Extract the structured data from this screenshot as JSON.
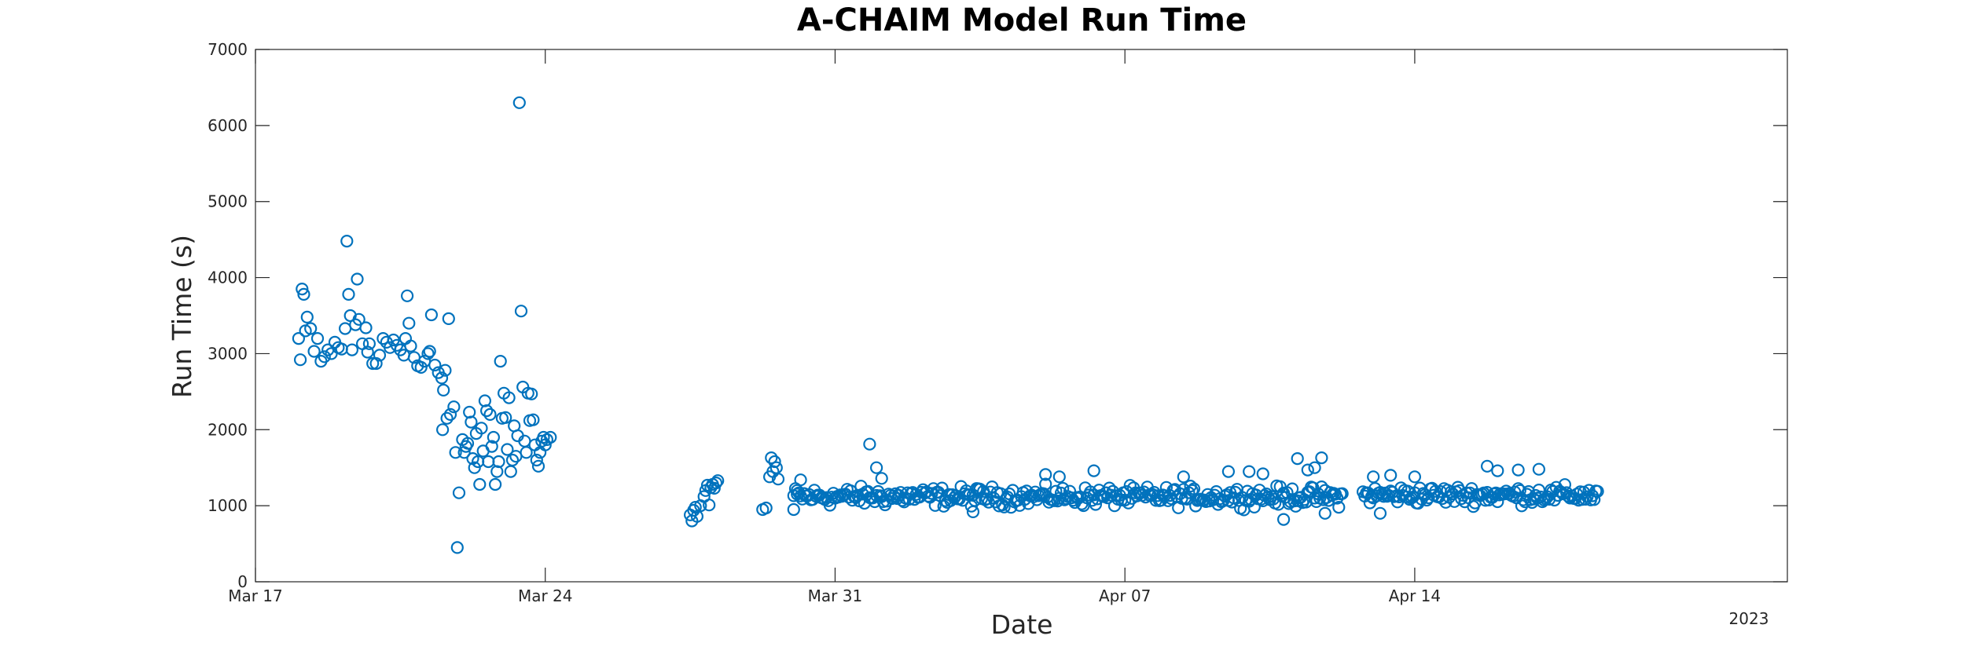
{
  "chart_data": {
    "type": "scatter",
    "title": "A-CHAIM Model Run Time",
    "xlabel": "Date",
    "ylabel": "Run Time (s)",
    "year_label": "2023",
    "xlim": [
      "2023-03-17",
      "2023-04-23"
    ],
    "ylim": [
      0,
      7000
    ],
    "x_ticks": [
      "Mar 17",
      "Mar 24",
      "Mar 31",
      "Apr 07",
      "Apr 14"
    ],
    "x_tick_dates": [
      "2023-03-17",
      "2023-03-24",
      "2023-03-31",
      "2023-04-07",
      "2023-04-14"
    ],
    "y_ticks": [
      "0",
      "1000",
      "2000",
      "3000",
      "4000",
      "5000",
      "6000",
      "7000"
    ],
    "grid": false,
    "marker": "open-circle",
    "color": "#0072BD",
    "series": [
      {
        "points": [
          [
            "2023-03-18 01:00",
            3200
          ],
          [
            "2023-03-18 02:00",
            2920
          ],
          [
            "2023-03-18 03:00",
            3850
          ],
          [
            "2023-03-18 04:00",
            3780
          ],
          [
            "2023-03-18 05:00",
            3300
          ],
          [
            "2023-03-18 06:00",
            3480
          ],
          [
            "2023-03-18 08:00",
            3330
          ],
          [
            "2023-03-18 10:00",
            3030
          ],
          [
            "2023-03-18 12:00",
            3200
          ],
          [
            "2023-03-18 14:00",
            2900
          ],
          [
            "2023-03-18 16:00",
            2960
          ],
          [
            "2023-03-18 18:00",
            3050
          ],
          [
            "2023-03-18 20:00",
            3000
          ],
          [
            "2023-03-18 22:00",
            3150
          ],
          [
            "2023-03-19 00:00",
            3080
          ],
          [
            "2023-03-19 02:00",
            3060
          ],
          [
            "2023-03-19 04:00",
            3330
          ],
          [
            "2023-03-19 05:00",
            4480
          ],
          [
            "2023-03-19 06:00",
            3780
          ],
          [
            "2023-03-19 07:00",
            3500
          ],
          [
            "2023-03-19 08:00",
            3050
          ],
          [
            "2023-03-19 10:00",
            3380
          ],
          [
            "2023-03-19 11:00",
            3980
          ],
          [
            "2023-03-19 12:00",
            3450
          ],
          [
            "2023-03-19 14:00",
            3130
          ],
          [
            "2023-03-19 16:00",
            3340
          ],
          [
            "2023-03-19 17:00",
            3020
          ],
          [
            "2023-03-19 18:00",
            3130
          ],
          [
            "2023-03-19 20:00",
            2870
          ],
          [
            "2023-03-19 22:00",
            2870
          ],
          [
            "2023-03-20 00:00",
            2980
          ],
          [
            "2023-03-20 02:00",
            3200
          ],
          [
            "2023-03-20 04:00",
            3150
          ],
          [
            "2023-03-20 06:00",
            3080
          ],
          [
            "2023-03-20 08:00",
            3180
          ],
          [
            "2023-03-20 10:00",
            3110
          ],
          [
            "2023-03-20 12:00",
            3050
          ],
          [
            "2023-03-20 14:00",
            2980
          ],
          [
            "2023-03-20 15:00",
            3200
          ],
          [
            "2023-03-20 16:00",
            3760
          ],
          [
            "2023-03-20 17:00",
            3400
          ],
          [
            "2023-03-20 18:00",
            3100
          ],
          [
            "2023-03-20 20:00",
            2950
          ],
          [
            "2023-03-20 22:00",
            2840
          ],
          [
            "2023-03-21 00:00",
            2820
          ],
          [
            "2023-03-21 02:00",
            2900
          ],
          [
            "2023-03-21 04:00",
            3000
          ],
          [
            "2023-03-21 05:00",
            3030
          ],
          [
            "2023-03-21 06:00",
            3510
          ],
          [
            "2023-03-21 08:00",
            2850
          ],
          [
            "2023-03-21 10:00",
            2750
          ],
          [
            "2023-03-21 12:00",
            2680
          ],
          [
            "2023-03-21 13:00",
            2520
          ],
          [
            "2023-03-21 14:00",
            2780
          ],
          [
            "2023-03-21 16:00",
            3460
          ],
          [
            "2023-03-21 12:30",
            2000
          ],
          [
            "2023-03-21 15:00",
            2150
          ],
          [
            "2023-03-21 17:00",
            2200
          ],
          [
            "2023-03-21 19:00",
            2300
          ],
          [
            "2023-03-21 20:00",
            1700
          ],
          [
            "2023-03-21 22:00",
            1170
          ],
          [
            "2023-03-21 21:00",
            450
          ],
          [
            "2023-03-22 00:00",
            1870
          ],
          [
            "2023-03-22 01:00",
            1700
          ],
          [
            "2023-03-22 02:00",
            1780
          ],
          [
            "2023-03-22 03:00",
            1820
          ],
          [
            "2023-03-22 04:00",
            2230
          ],
          [
            "2023-03-22 05:00",
            2100
          ],
          [
            "2023-03-22 06:00",
            1620
          ],
          [
            "2023-03-22 07:00",
            1500
          ],
          [
            "2023-03-22 08:00",
            1950
          ],
          [
            "2023-03-22 09:00",
            1580
          ],
          [
            "2023-03-22 10:00",
            1280
          ],
          [
            "2023-03-22 11:00",
            2020
          ],
          [
            "2023-03-22 12:00",
            1720
          ],
          [
            "2023-03-22 13:00",
            2380
          ],
          [
            "2023-03-22 14:00",
            2250
          ],
          [
            "2023-03-22 15:00",
            1580
          ],
          [
            "2023-03-22 16:00",
            2200
          ],
          [
            "2023-03-22 17:00",
            1780
          ],
          [
            "2023-03-22 18:00",
            1900
          ],
          [
            "2023-03-22 19:00",
            1280
          ],
          [
            "2023-03-22 20:00",
            1450
          ],
          [
            "2023-03-22 21:00",
            1580
          ],
          [
            "2023-03-22 22:00",
            2900
          ],
          [
            "2023-03-22 23:00",
            2150
          ],
          [
            "2023-03-23 00:00",
            2480
          ],
          [
            "2023-03-23 01:00",
            2160
          ],
          [
            "2023-03-23 02:00",
            1740
          ],
          [
            "2023-03-23 03:00",
            2420
          ],
          [
            "2023-03-23 04:00",
            1450
          ],
          [
            "2023-03-23 05:00",
            1600
          ],
          [
            "2023-03-23 06:00",
            2050
          ],
          [
            "2023-03-23 07:00",
            1650
          ],
          [
            "2023-03-23 08:00",
            1920
          ],
          [
            "2023-03-23 09:00",
            6300
          ],
          [
            "2023-03-23 10:00",
            3560
          ],
          [
            "2023-03-23 11:00",
            2560
          ],
          [
            "2023-03-23 12:00",
            1850
          ],
          [
            "2023-03-23 13:00",
            1700
          ],
          [
            "2023-03-23 14:00",
            2480
          ],
          [
            "2023-03-23 15:00",
            2120
          ],
          [
            "2023-03-23 16:00",
            2470
          ],
          [
            "2023-03-23 17:00",
            2130
          ],
          [
            "2023-03-23 18:00",
            1800
          ],
          [
            "2023-03-23 19:00",
            1600
          ],
          [
            "2023-03-23 20:00",
            1520
          ],
          [
            "2023-03-23 21:00",
            1700
          ],
          [
            "2023-03-23 22:00",
            1850
          ],
          [
            "2023-03-23 23:00",
            1900
          ],
          [
            "2023-03-24 00:00",
            1800
          ],
          [
            "2023-03-24 01:00",
            1870
          ],
          [
            "2023-03-24 03:00",
            1900
          ],
          [
            "2023-03-27 12:00",
            880
          ],
          [
            "2023-03-27 13:00",
            800
          ],
          [
            "2023-03-27 14:00",
            940
          ],
          [
            "2023-03-27 15:00",
            980
          ],
          [
            "2023-03-27 16:00",
            860
          ],
          [
            "2023-03-27 18:00",
            1000
          ],
          [
            "2023-03-27 20:00",
            1120
          ],
          [
            "2023-03-27 21:00",
            1200
          ],
          [
            "2023-03-27 22:00",
            1270
          ],
          [
            "2023-03-27 23:00",
            1010
          ],
          [
            "2023-03-28 00:00",
            1240
          ],
          [
            "2023-03-28 01:00",
            1280
          ],
          [
            "2023-03-28 02:00",
            1230
          ],
          [
            "2023-03-28 03:00",
            1300
          ],
          [
            "2023-03-28 04:00",
            1330
          ],
          [
            "2023-03-29 06:00",
            950
          ],
          [
            "2023-03-29 08:00",
            970
          ],
          [
            "2023-03-29 10:00",
            1380
          ],
          [
            "2023-03-29 11:00",
            1630
          ],
          [
            "2023-03-29 12:00",
            1450
          ],
          [
            "2023-03-29 13:00",
            1580
          ],
          [
            "2023-03-29 14:00",
            1500
          ],
          [
            "2023-03-29 15:00",
            1350
          ],
          [
            "2023-03-30 00:00",
            950
          ],
          [
            "2023-03-30 02:00",
            1200
          ],
          [
            "2023-03-30 04:00",
            1340
          ],
          [
            "2023-03-31 20:00",
            1810
          ],
          [
            "2023-04-01 00:00",
            1500
          ],
          [
            "2023-04-01 03:00",
            1360
          ],
          [
            "2023-04-03 08:00",
            920
          ],
          [
            "2023-04-05 02:00",
            1410
          ],
          [
            "2023-04-05 10:00",
            1380
          ],
          [
            "2023-04-06 06:00",
            1460
          ],
          [
            "2023-04-08 10:00",
            1380
          ],
          [
            "2023-04-09 12:00",
            1450
          ],
          [
            "2023-04-10 00:00",
            1450
          ],
          [
            "2023-04-10 08:00",
            1420
          ],
          [
            "2023-04-10 20:00",
            820
          ],
          [
            "2023-04-11 04:00",
            1620
          ],
          [
            "2023-04-11 10:00",
            1470
          ],
          [
            "2023-04-11 14:00",
            1500
          ],
          [
            "2023-04-11 18:00",
            1630
          ],
          [
            "2023-04-11 20:00",
            900
          ],
          [
            "2023-04-13 00:00",
            1380
          ],
          [
            "2023-04-13 04:00",
            900
          ],
          [
            "2023-04-13 10:00",
            1400
          ],
          [
            "2023-04-14 00:00",
            1380
          ],
          [
            "2023-04-15 18:00",
            1520
          ],
          [
            "2023-04-16 00:00",
            1460
          ],
          [
            "2023-04-16 12:00",
            1470
          ],
          [
            "2023-04-17 00:00",
            1480
          ]
        ],
        "dense_segments": [
          {
            "start": "2023-03-30 00:00",
            "end": "2023-04-12 06:00",
            "step_hours": 1,
            "center": 1120,
            "spread": 230
          },
          {
            "start": "2023-04-12 18:00",
            "end": "2023-04-18 10:00",
            "step_hours": 1,
            "center": 1140,
            "spread": 220
          }
        ]
      }
    ]
  }
}
